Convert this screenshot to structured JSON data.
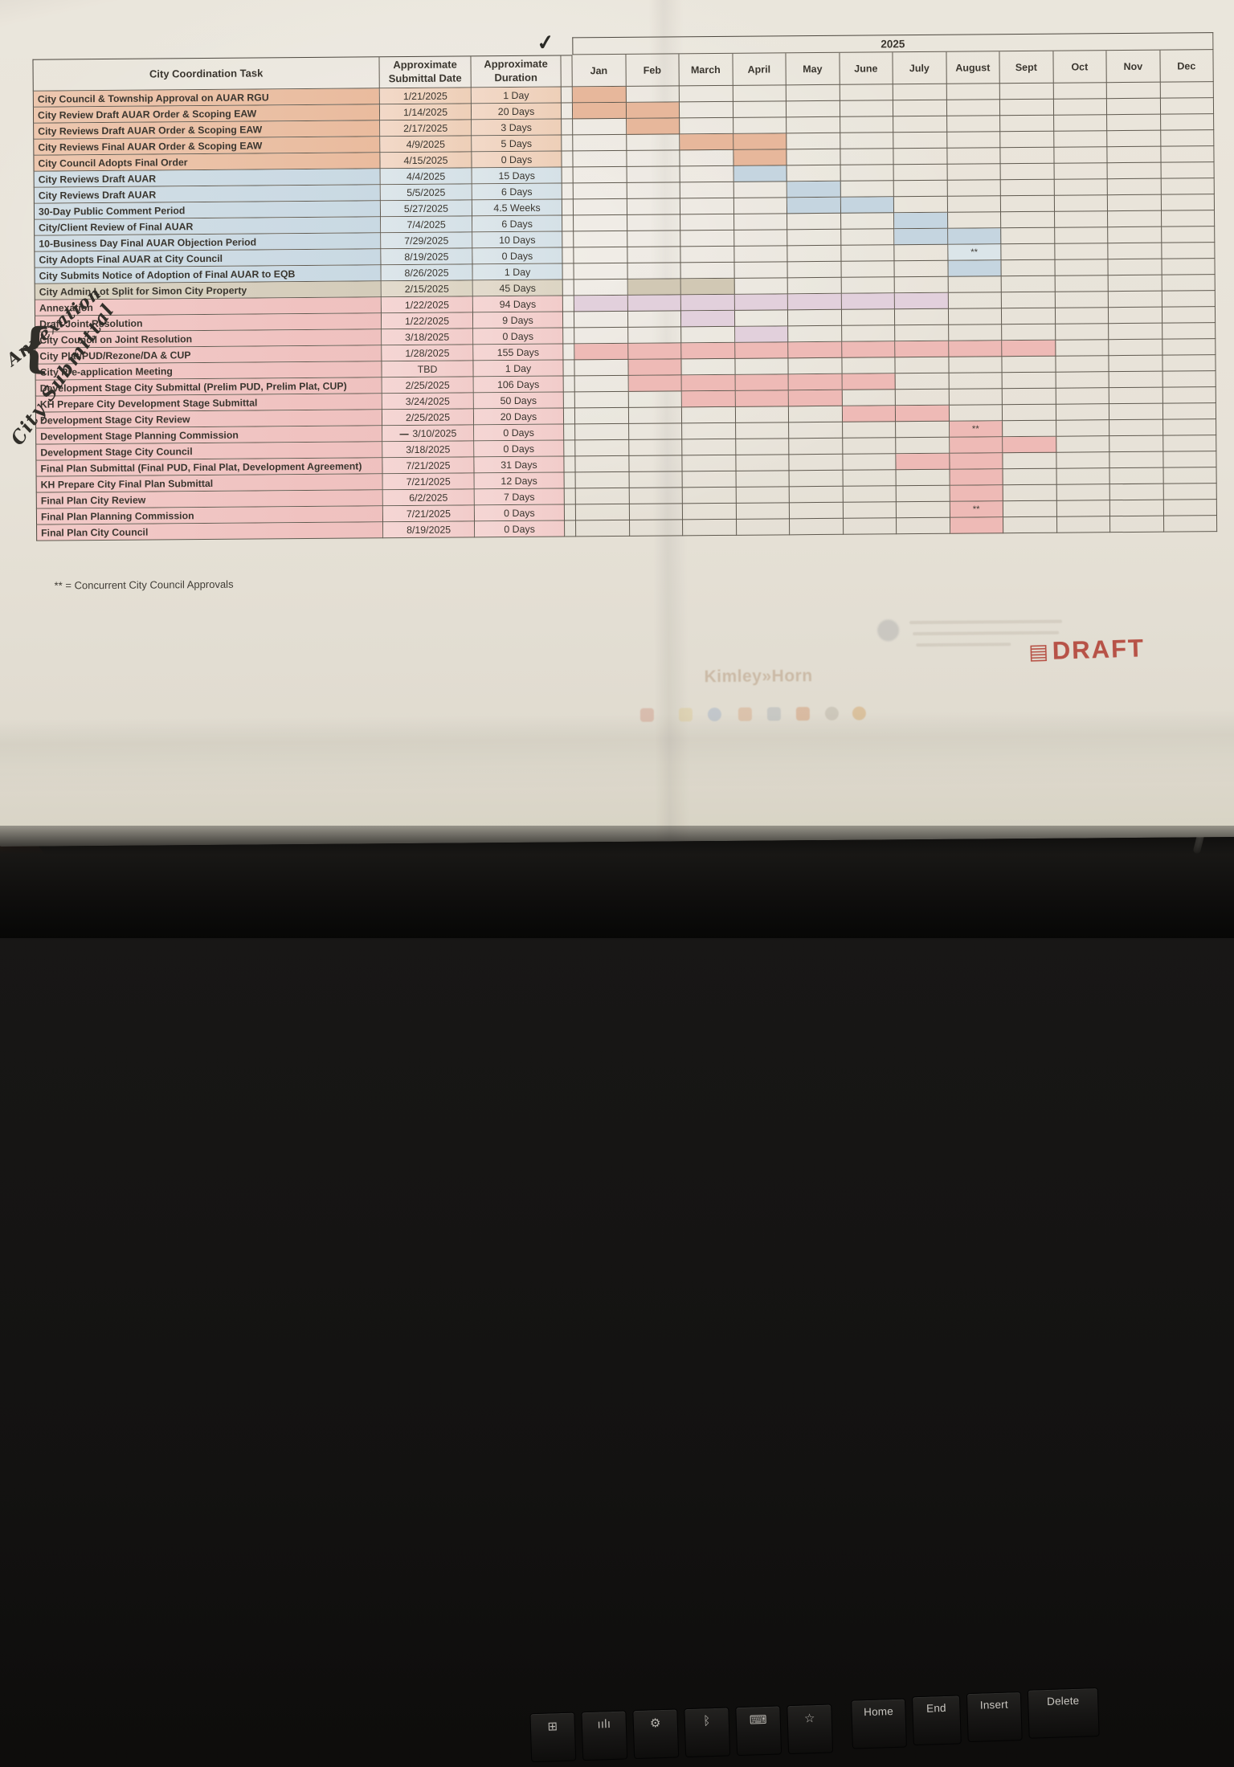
{
  "gantt": {
    "year": "2025",
    "months": [
      "Jan",
      "Feb",
      "March",
      "April",
      "May",
      "June",
      "July",
      "August",
      "Sept",
      "Oct",
      "Nov",
      "Dec"
    ]
  },
  "schedule": {
    "headers": {
      "task": "City Coordination Task",
      "submittal_line1": "Approximate",
      "submittal_line2": "Submittal Date",
      "duration_line1": "Approximate",
      "duration_line2": "Duration"
    },
    "rows": [
      {
        "task": "City Council & Township Approval on AUAR RGU",
        "date": "1/21/2025",
        "duration": "1 Day",
        "group": "salmon",
        "bar": "salmon",
        "bar_start": 1,
        "bar_end": 1,
        "mark_month": null,
        "check_month": 1,
        "date_prefix": null
      },
      {
        "task": "City Review Draft AUAR Order & Scoping EAW",
        "date": "1/14/2025",
        "duration": "20 Days",
        "group": "salmon",
        "bar": "salmon",
        "bar_start": 1,
        "bar_end": 2,
        "mark_month": null,
        "check_month": null,
        "date_prefix": null
      },
      {
        "task": "City Reviews Draft AUAR Order & Scoping EAW",
        "date": "2/17/2025",
        "duration": "3 Days",
        "group": "salmon",
        "bar": "salmon",
        "bar_start": 2,
        "bar_end": 2,
        "mark_month": null,
        "check_month": null,
        "date_prefix": null
      },
      {
        "task": "City Reviews Final AUAR Order & Scoping EAW",
        "date": "4/9/2025",
        "duration": "5 Days",
        "group": "salmon",
        "bar": "salmon",
        "bar_start": 3,
        "bar_end": 4,
        "mark_month": null,
        "check_month": null,
        "date_prefix": null
      },
      {
        "task": "City Council Adopts Final Order",
        "date": "4/15/2025",
        "duration": "0 Days",
        "group": "salmon",
        "bar": "salmon",
        "bar_start": 4,
        "bar_end": 4,
        "mark_month": null,
        "check_month": null,
        "date_prefix": null
      },
      {
        "task": "City Reviews Draft AUAR",
        "date": "4/4/2025",
        "duration": "15 Days",
        "group": "blue",
        "bar": "blue",
        "bar_start": 4,
        "bar_end": 4,
        "mark_month": null,
        "check_month": null,
        "date_prefix": null
      },
      {
        "task": "City Reviews Draft AUAR",
        "date": "5/5/2025",
        "duration": "6 Days",
        "group": "blue",
        "bar": "blue",
        "bar_start": 5,
        "bar_end": 5,
        "mark_month": null,
        "check_month": null,
        "date_prefix": null
      },
      {
        "task": "30-Day Public Comment Period",
        "date": "5/27/2025",
        "duration": "4.5 Weeks",
        "group": "blue",
        "bar": "blue",
        "bar_start": 5,
        "bar_end": 6,
        "mark_month": null,
        "check_month": null,
        "date_prefix": null
      },
      {
        "task": "City/Client Review of Final AUAR",
        "date": "7/4/2025",
        "duration": "6 Days",
        "group": "blue",
        "bar": "blue",
        "bar_start": 7,
        "bar_end": 7,
        "mark_month": null,
        "check_month": null,
        "date_prefix": null
      },
      {
        "task": "10-Business Day Final AUAR Objection Period",
        "date": "7/29/2025",
        "duration": "10 Days",
        "group": "blue",
        "bar": "blue",
        "bar_start": 7,
        "bar_end": 8,
        "mark_month": null,
        "check_month": null,
        "date_prefix": null
      },
      {
        "task": "City Adopts Final AUAR at City Council",
        "date": "8/19/2025",
        "duration": "0 Days",
        "group": "blue",
        "bar": "blue-lt",
        "bar_start": 8,
        "bar_end": 8,
        "mark_month": 8,
        "check_month": null,
        "date_prefix": null
      },
      {
        "task": "City Submits Notice of Adoption of Final AUAR to EQB",
        "date": "8/26/2025",
        "duration": "1 Day",
        "group": "blue",
        "bar": "blue",
        "bar_start": 8,
        "bar_end": 8,
        "mark_month": null,
        "check_month": null,
        "date_prefix": null
      },
      {
        "task": "City Admin Lot Split for Simon City Property",
        "date": "2/15/2025",
        "duration": "45 Days",
        "group": "tan",
        "bar": "tan",
        "bar_start": 2,
        "bar_end": 3,
        "mark_month": null,
        "check_month": null,
        "date_prefix": null
      },
      {
        "task": "Annexation",
        "date": "1/22/2025",
        "duration": "94 Days",
        "group": "pink",
        "bar": "lavender",
        "bar_start": 1,
        "bar_end": 7,
        "mark_month": null,
        "check_month": null,
        "date_prefix": null
      },
      {
        "task": "Draft Joint Resolution",
        "date": "1/22/2025",
        "duration": "9 Days",
        "group": "pink",
        "bar": "lavender",
        "bar_start": 3,
        "bar_end": 3,
        "mark_month": null,
        "check_month": null,
        "date_prefix": null
      },
      {
        "task": "City Council on Joint Resolution",
        "date": "3/18/2025",
        "duration": "0 Days",
        "group": "pink",
        "bar": "lavender",
        "bar_start": 4,
        "bar_end": 4,
        "mark_month": null,
        "check_month": null,
        "date_prefix": null
      },
      {
        "task": "City Plat/PUD/Rezone/DA & CUP",
        "date": "1/28/2025",
        "duration": "155 Days",
        "group": "pink",
        "bar": "pink",
        "bar_start": 1,
        "bar_end": 9,
        "mark_month": null,
        "check_month": null,
        "date_prefix": null
      },
      {
        "task": "City Pre-application Meeting",
        "date": "TBD",
        "duration": "1 Day",
        "group": "pink",
        "bar": "pink",
        "bar_start": 2,
        "bar_end": 2,
        "mark_month": null,
        "check_month": null,
        "date_prefix": null
      },
      {
        "task": "Development Stage City Submittal (Prelim PUD, Prelim Plat, CUP)",
        "date": "2/25/2025",
        "duration": "106 Days",
        "group": "pink",
        "bar": "pink",
        "bar_start": 2,
        "bar_end": 6,
        "mark_month": null,
        "check_month": null,
        "date_prefix": null
      },
      {
        "task": "KH Prepare City Development Stage Submittal",
        "date": "3/24/2025",
        "duration": "50 Days",
        "group": "pink",
        "bar": "pink",
        "bar_start": 3,
        "bar_end": 5,
        "mark_month": null,
        "check_month": null,
        "date_prefix": null
      },
      {
        "task": "Development Stage City Review",
        "date": "2/25/2025",
        "duration": "20 Days",
        "group": "pink",
        "bar": "pink",
        "bar_start": 6,
        "bar_end": 7,
        "mark_month": null,
        "check_month": null,
        "date_prefix": null
      },
      {
        "task": "Development Stage Planning Commission",
        "date": "3/10/2025",
        "duration": "0 Days",
        "group": "pink",
        "bar": "pink",
        "bar_start": 8,
        "bar_end": 8,
        "mark_month": 8,
        "check_month": null,
        "date_prefix": "—"
      },
      {
        "task": "Development Stage City Council",
        "date": "3/18/2025",
        "duration": "0 Days",
        "group": "pink",
        "bar": "pink",
        "bar_start": 8,
        "bar_end": 9,
        "mark_month": null,
        "check_month": null,
        "date_prefix": null
      },
      {
        "task": "Final Plan Submittal (Final PUD, Final Plat, Development Agreement)",
        "date": "7/21/2025",
        "duration": "31 Days",
        "group": "pink",
        "bar": "pink",
        "bar_start": 7,
        "bar_end": 8,
        "mark_month": null,
        "check_month": null,
        "date_prefix": null
      },
      {
        "task": "KH Prepare City Final Plan Submittal",
        "date": "7/21/2025",
        "duration": "12 Days",
        "group": "pink",
        "bar": "pink",
        "bar_start": 8,
        "bar_end": 8,
        "mark_month": null,
        "check_month": null,
        "date_prefix": null
      },
      {
        "task": "Final Plan City Review",
        "date": "6/2/2025",
        "duration": "7 Days",
        "group": "pink",
        "bar": "pink",
        "bar_start": 8,
        "bar_end": 8,
        "mark_month": null,
        "check_month": null,
        "date_prefix": null
      },
      {
        "task": "Final Plan Planning Commission",
        "date": "7/21/2025",
        "duration": "0 Days",
        "group": "pink",
        "bar": "pink",
        "bar_start": 8,
        "bar_end": 8,
        "mark_month": 8,
        "check_month": null,
        "date_prefix": null
      },
      {
        "task": "Final Plan City Council",
        "date": "8/19/2025",
        "duration": "0 Days",
        "group": "pink",
        "bar": "pink",
        "bar_start": 8,
        "bar_end": 8,
        "mark_month": null,
        "check_month": null,
        "date_prefix": null
      }
    ],
    "concurrent_mark": "**"
  },
  "footnote": "** = Concurrent City Council Approvals",
  "handwriting": {
    "checkmark": "✓",
    "annexation_label": "Annexation",
    "brace": "{",
    "city_submittal_label": "City Submittal",
    "date_dash": "—"
  },
  "stamp": {
    "label": "DRAFT"
  },
  "bleedthrough": {
    "logo_text": "Kimley»Horn"
  },
  "keyboard": {
    "keys": [
      "Home",
      "End",
      "Insert",
      "Delete"
    ],
    "icon_keys": [
      "apps-icon",
      "signal-icon",
      "gear-icon",
      "bluetooth-icon",
      "keyboard-icon",
      "star-icon"
    ]
  },
  "colors": {
    "salmon": "#ecbda1",
    "blue": "#cadde9",
    "tan": "#d5cfbe",
    "pink": "#f2c3c3",
    "lavender": "#e4d3e2",
    "stamp_red": "#b4453a",
    "paper": "#e9e6de"
  }
}
